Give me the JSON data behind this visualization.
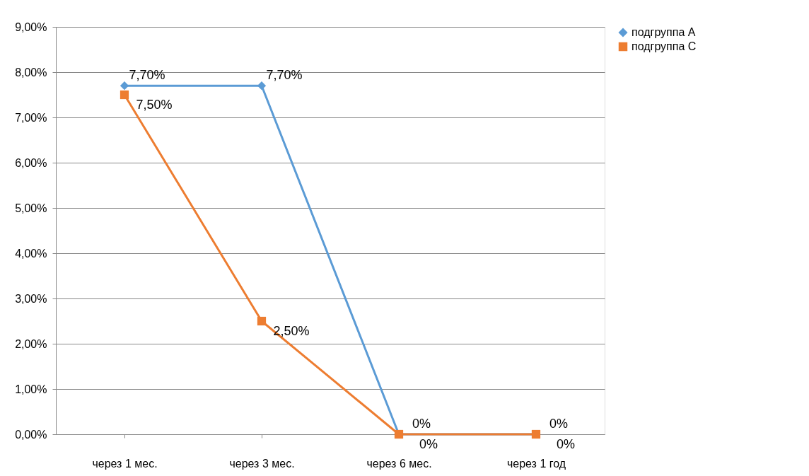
{
  "chart_data": {
    "type": "line",
    "categories": [
      "через 1 мес.",
      "через 3 мес.",
      "через 6 мес.",
      "через 1 год"
    ],
    "series": [
      {
        "name": "подгруппа А",
        "color": "#5b9bd5",
        "marker": "diamond",
        "values": [
          7.7,
          7.7,
          0,
          0
        ],
        "value_labels": [
          "7,70%",
          "7,70%",
          "0%",
          "0%"
        ]
      },
      {
        "name": "подгруппа С",
        "color": "#ed7d31",
        "marker": "square",
        "values": [
          7.5,
          2.5,
          0,
          0
        ],
        "value_labels": [
          "7,50%",
          "2,50%",
          "0%",
          "0%"
        ]
      }
    ],
    "ylim": [
      0,
      9
    ],
    "yticks": [
      {
        "value": 0,
        "label": "0,00%"
      },
      {
        "value": 1,
        "label": "1,00%"
      },
      {
        "value": 2,
        "label": "2,00%"
      },
      {
        "value": 3,
        "label": "3,00%"
      },
      {
        "value": 4,
        "label": "4,00%"
      },
      {
        "value": 5,
        "label": "5,00%"
      },
      {
        "value": 6,
        "label": "6,00%"
      },
      {
        "value": 7,
        "label": "7,00%"
      },
      {
        "value": 8,
        "label": "8,00%"
      },
      {
        "value": 9,
        "label": "9,00%"
      }
    ],
    "grid": "y",
    "legend": "right"
  }
}
